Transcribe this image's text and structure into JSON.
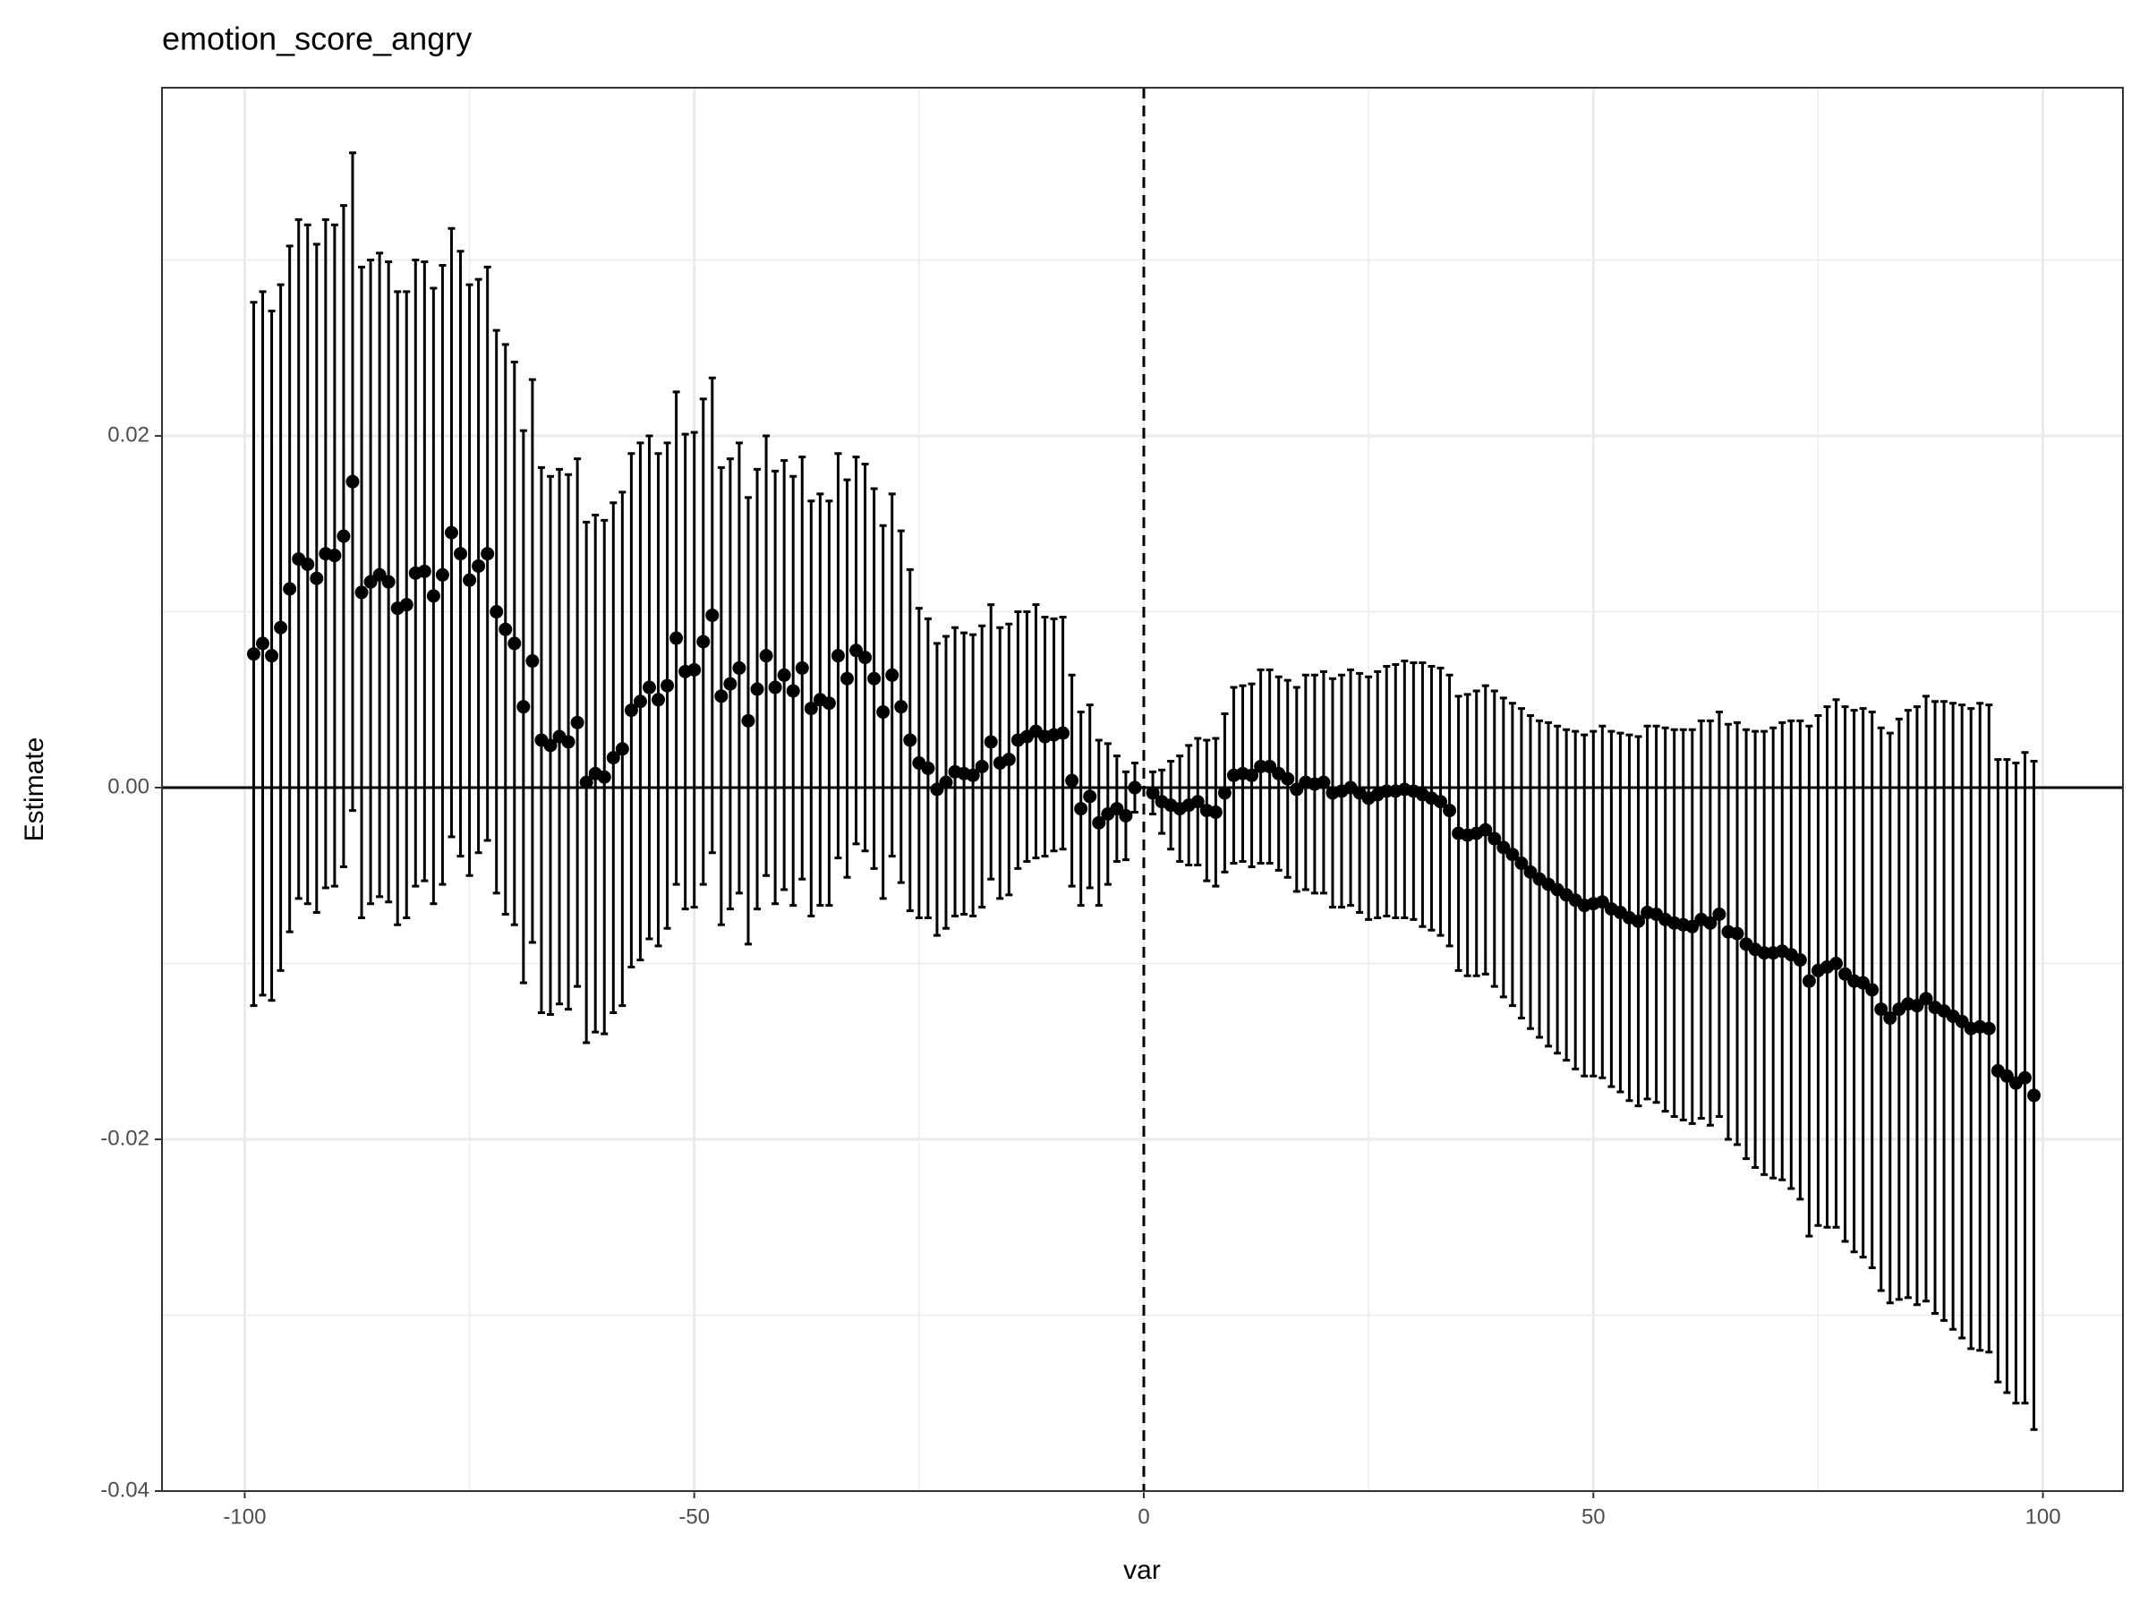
{
  "chart_data": {
    "type": "errorbar",
    "title": "emotion_score_angry",
    "x_label": "var",
    "y_label": "Estimate",
    "color": "#000000",
    "x": [
      -99,
      -98,
      -97,
      -96,
      -95,
      -94,
      -93,
      -92,
      -91,
      -90,
      -89,
      -88,
      -87,
      -86,
      -85,
      -84,
      -83,
      -82,
      -81,
      -80,
      -79,
      -78,
      -77,
      -76,
      -75,
      -74,
      -73,
      -72,
      -71,
      -70,
      -69,
      -68,
      -67,
      -66,
      -65,
      -64,
      -63,
      -62,
      -61,
      -60,
      -59,
      -58,
      -57,
      -56,
      -55,
      -54,
      -53,
      -52,
      -51,
      -50,
      -49,
      -48,
      -47,
      -46,
      -45,
      -44,
      -43,
      -42,
      -41,
      -40,
      -39,
      -38,
      -37,
      -36,
      -35,
      -34,
      -33,
      -32,
      -31,
      -30,
      -29,
      -28,
      -27,
      -26,
      -25,
      -24,
      -23,
      -22,
      -21,
      -20,
      -19,
      -18,
      -17,
      -16,
      -15,
      -14,
      -13,
      -12,
      -11,
      -10,
      -9,
      -8,
      -7,
      -6,
      -5,
      -4,
      -3,
      -2,
      -1,
      1,
      2,
      3,
      4,
      5,
      6,
      7,
      8,
      9,
      10,
      11,
      12,
      13,
      14,
      15,
      16,
      17,
      18,
      19,
      20,
      21,
      22,
      23,
      24,
      25,
      26,
      27,
      28,
      29,
      30,
      31,
      32,
      33,
      34,
      35,
      36,
      37,
      38,
      39,
      40,
      41,
      42,
      43,
      44,
      45,
      46,
      47,
      48,
      49,
      50,
      51,
      52,
      53,
      54,
      55,
      56,
      57,
      58,
      59,
      60,
      61,
      62,
      63,
      64,
      65,
      66,
      67,
      68,
      69,
      70,
      71,
      72,
      73,
      74,
      75,
      76,
      77,
      78,
      79,
      80,
      81,
      82,
      83,
      84,
      85,
      86,
      87,
      88,
      89,
      90,
      91,
      92,
      93,
      94,
      95,
      96,
      97,
      98,
      99
    ],
    "values": [
      0.0076,
      0.0082,
      0.0075,
      0.0091,
      0.0113,
      0.013,
      0.0127,
      0.0119,
      0.0133,
      0.0132,
      0.0143,
      0.0174,
      0.0111,
      0.0117,
      0.0121,
      0.0117,
      0.0102,
      0.0104,
      0.0122,
      0.0123,
      0.0109,
      0.0121,
      0.0145,
      0.0133,
      0.0118,
      0.0126,
      0.0133,
      0.01,
      0.009,
      0.0082,
      0.0046,
      0.0072,
      0.0027,
      0.0024,
      0.0029,
      0.0026,
      0.0037,
      0.0003,
      0.0008,
      0.0006,
      0.0017,
      0.0022,
      0.0044,
      0.0049,
      0.0057,
      0.005,
      0.0058,
      0.0085,
      0.0066,
      0.0067,
      0.0083,
      0.0098,
      0.0052,
      0.0059,
      0.0068,
      0.0038,
      0.0056,
      0.0075,
      0.0057,
      0.0064,
      0.0055,
      0.0068,
      0.0045,
      0.005,
      0.0048,
      0.0075,
      0.0062,
      0.0078,
      0.0074,
      0.0062,
      0.0043,
      0.0064,
      0.0046,
      0.0027,
      0.0014,
      0.0011,
      -0.0001,
      0.0003,
      0.0009,
      0.0008,
      0.0007,
      0.0012,
      0.0026,
      0.0014,
      0.0016,
      0.0027,
      0.0029,
      0.0032,
      0.0029,
      0.003,
      0.0031,
      0.0004,
      -0.0012,
      -0.0005,
      -0.002,
      -0.0015,
      -0.0012,
      -0.0016,
      0,
      -0.0003,
      -0.0008,
      -0.001,
      -0.0012,
      -0.001,
      -0.0008,
      -0.0013,
      -0.0014,
      -0.0003,
      0.0007,
      0.0008,
      0.0007,
      0.0012,
      0.0012,
      0.0008,
      0.0005,
      -0.0001,
      0.0003,
      0.0002,
      0.0003,
      -0.0003,
      -0.0002,
      0,
      -0.0003,
      -0.0006,
      -0.0004,
      -0.0002,
      -0.0002,
      -0.0001,
      -0.0002,
      -0.0004,
      -0.0006,
      -0.0008,
      -0.0013,
      -0.0026,
      -0.0027,
      -0.0026,
      -0.0024,
      -0.0029,
      -0.0034,
      -0.0038,
      -0.0043,
      -0.0048,
      -0.0052,
      -0.0055,
      -0.0058,
      -0.0061,
      -0.0064,
      -0.0067,
      -0.0066,
      -0.0065,
      -0.0069,
      -0.0071,
      -0.0074,
      -0.0076,
      -0.0071,
      -0.0072,
      -0.0075,
      -0.0077,
      -0.0078,
      -0.0079,
      -0.0075,
      -0.0077,
      -0.0072,
      -0.0082,
      -0.0083,
      -0.0089,
      -0.0092,
      -0.0094,
      -0.0094,
      -0.0093,
      -0.0095,
      -0.0098,
      -0.011,
      -0.0104,
      -0.0102,
      -0.01,
      -0.0106,
      -0.011,
      -0.0111,
      -0.0115,
      -0.0126,
      -0.0131,
      -0.0126,
      -0.0123,
      -0.0124,
      -0.012,
      -0.0125,
      -0.0127,
      -0.013,
      -0.0133,
      -0.0137,
      -0.0136,
      -0.0137,
      -0.0161,
      -0.0164,
      -0.0168,
      -0.0165,
      -0.0175
    ],
    "errors": [
      0.02,
      0.02,
      0.0196,
      0.0195,
      0.0195,
      0.0193,
      0.0193,
      0.019,
      0.019,
      0.0188,
      0.0188,
      0.0187,
      0.0185,
      0.0183,
      0.0183,
      0.0182,
      0.018,
      0.0178,
      0.0178,
      0.0176,
      0.0175,
      0.0176,
      0.0173,
      0.0172,
      0.0168,
      0.0163,
      0.0163,
      0.016,
      0.0162,
      0.016,
      0.0157,
      0.016,
      0.0155,
      0.0153,
      0.0152,
      0.0152,
      0.015,
      0.0148,
      0.0147,
      0.0146,
      0.0145,
      0.0146,
      0.0146,
      0.0147,
      0.0143,
      0.014,
      0.0138,
      0.014,
      0.0135,
      0.0135,
      0.0138,
      0.0135,
      0.013,
      0.0128,
      0.0128,
      0.0127,
      0.0125,
      0.0125,
      0.0123,
      0.0122,
      0.0122,
      0.012,
      0.0118,
      0.0117,
      0.0115,
      0.0115,
      0.0113,
      0.011,
      0.011,
      0.0108,
      0.0106,
      0.0103,
      0.01,
      0.0097,
      0.0088,
      0.0085,
      0.0083,
      0.0083,
      0.0082,
      0.008,
      0.008,
      0.008,
      0.0078,
      0.0077,
      0.0077,
      0.0073,
      0.0071,
      0.0072,
      0.0068,
      0.0066,
      0.0066,
      0.006,
      0.0055,
      0.0052,
      0.0047,
      0.004,
      0.003,
      0.0025,
      0.0014,
      0.0012,
      0.0018,
      0.0025,
      0.003,
      0.0034,
      0.0036,
      0.004,
      0.0042,
      0.0045,
      0.005,
      0.005,
      0.0052,
      0.0055,
      0.0055,
      0.0055,
      0.0056,
      0.0058,
      0.0061,
      0.0062,
      0.0063,
      0.0065,
      0.0066,
      0.0067,
      0.0068,
      0.0069,
      0.007,
      0.0071,
      0.0072,
      0.0073,
      0.0073,
      0.0075,
      0.0075,
      0.0076,
      0.0077,
      0.0078,
      0.008,
      0.0081,
      0.0082,
      0.0084,
      0.0085,
      0.0086,
      0.0088,
      0.0089,
      0.009,
      0.0092,
      0.0093,
      0.0094,
      0.0096,
      0.0097,
      0.0098,
      0.01,
      0.0101,
      0.0102,
      0.0104,
      0.0105,
      0.0106,
      0.0107,
      0.0109,
      0.011,
      0.0111,
      0.0112,
      0.0113,
      0.0115,
      0.0115,
      0.0118,
      0.012,
      0.0122,
      0.0124,
      0.0126,
      0.0128,
      0.013,
      0.0133,
      0.0136,
      0.0145,
      0.0145,
      0.0148,
      0.015,
      0.0152,
      0.0154,
      0.0156,
      0.0158,
      0.016,
      0.0162,
      0.0165,
      0.0167,
      0.017,
      0.0172,
      0.0174,
      0.0176,
      0.0178,
      0.018,
      0.0182,
      0.0184,
      0.0184,
      0.0177,
      0.018,
      0.0182,
      0.0185,
      0.019
    ],
    "xlim": [
      -109.2,
      108.9
    ],
    "xticks": [
      -100,
      -50,
      0,
      50,
      100
    ],
    "x_minor_grid": [
      -75,
      -25,
      25,
      75
    ],
    "ylim": [
      -0.04,
      0.0398
    ],
    "yticks": [
      -0.04,
      -0.02,
      {
        "value": 0,
        "label": "0.00"
      },
      0.02
    ],
    "y_minor_grid": [
      -0.03,
      -0.01,
      0.01,
      0.03
    ],
    "hline": 0,
    "vline": 0,
    "grid": true
  }
}
